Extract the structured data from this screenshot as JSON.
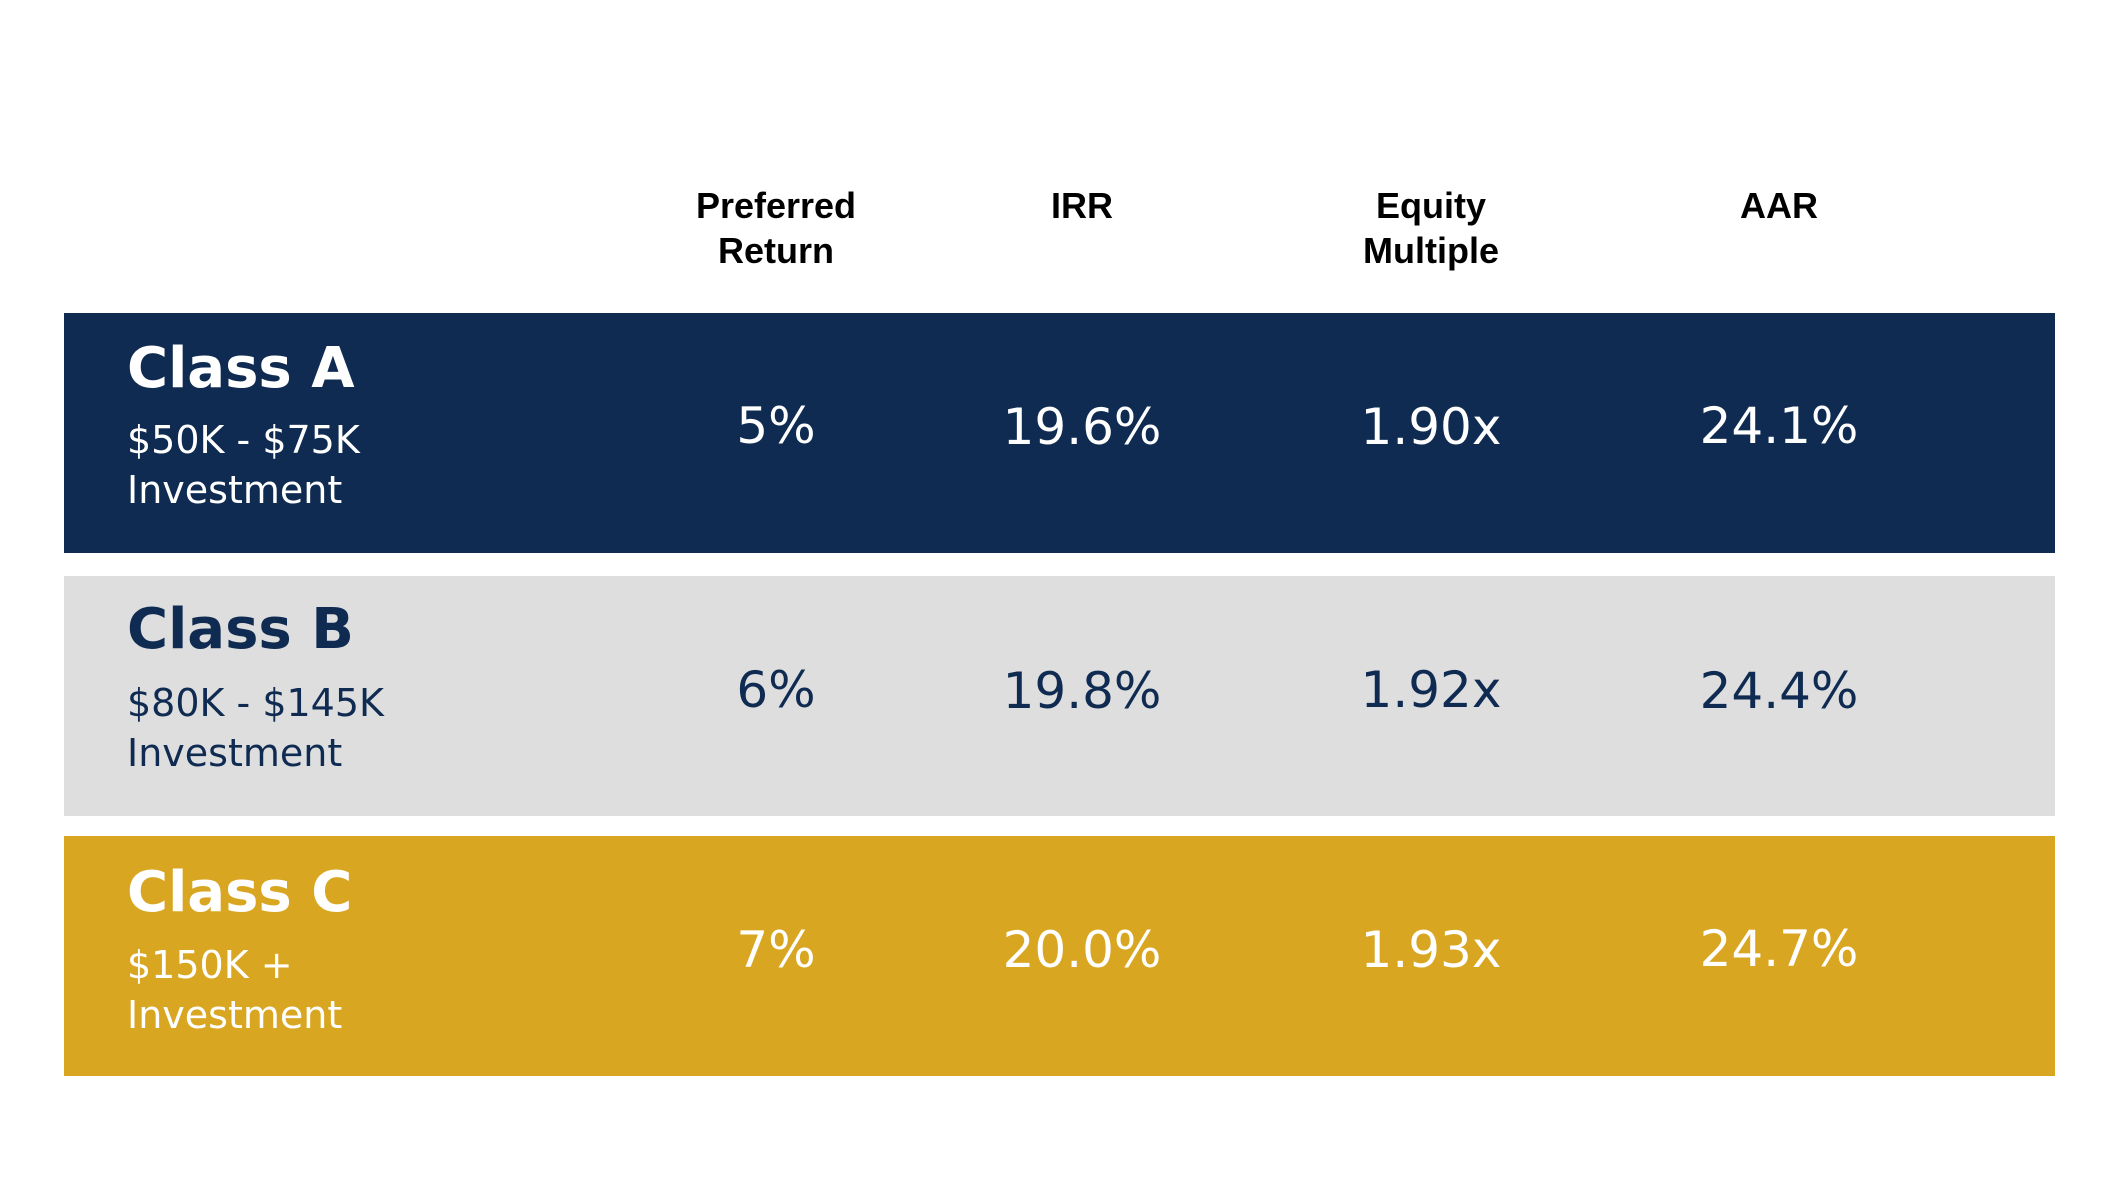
{
  "header": {
    "columns": [
      "Preferred\nReturn",
      "IRR",
      "Equity\nMultiple",
      "AAR"
    ]
  },
  "colors": {
    "class_a_bg": "#0f2b52",
    "class_b_bg": "#dedede",
    "class_c_bg": "#d9a621",
    "light_text": "#ffffff",
    "dark_text": "#0f2b52"
  },
  "classes": [
    {
      "title": "Class A",
      "range": "$50K - $75K",
      "investment": "Investment",
      "preferred_return": "5%",
      "irr": "19.6%",
      "equity_multiple": "1.90x",
      "aar": "24.1%"
    },
    {
      "title": "Class B",
      "range": "$80K - $145K",
      "investment": "Investment",
      "preferred_return": "6%",
      "irr": "19.8%",
      "equity_multiple": "1.92x",
      "aar": "24.4%"
    },
    {
      "title": "Class C",
      "range": "$150K +",
      "investment": "Investment",
      "preferred_return": "7%",
      "irr": "20.0%",
      "equity_multiple": "1.93x",
      "aar": "24.7%"
    }
  ]
}
